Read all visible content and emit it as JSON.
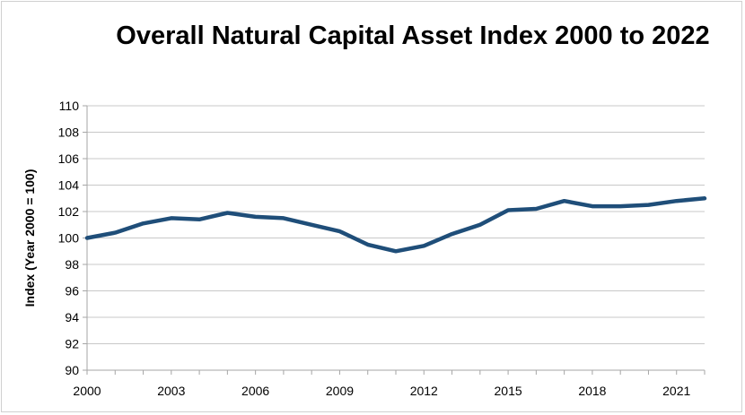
{
  "chart_data": {
    "type": "line",
    "title": "Overall Natural Capital Asset Index 2000 to 2022",
    "xlabel": "",
    "ylabel": "Index (Year 2000 = 100)",
    "ylim": [
      90,
      110
    ],
    "yticks": [
      90,
      92,
      94,
      96,
      98,
      100,
      102,
      104,
      106,
      108,
      110
    ],
    "xlim": [
      2000,
      2022
    ],
    "xticks": [
      2000,
      2003,
      2006,
      2009,
      2012,
      2015,
      2018,
      2021
    ],
    "grid": true,
    "line_color": "#1f4e79",
    "series": [
      {
        "x": [
          2000,
          2001,
          2002,
          2003,
          2004,
          2005,
          2006,
          2007,
          2008,
          2009,
          2010,
          2011,
          2012,
          2013,
          2014,
          2015,
          2016,
          2017,
          2018,
          2019,
          2020,
          2021,
          2022
        ],
        "values": [
          100.0,
          100.4,
          101.1,
          101.5,
          101.4,
          101.9,
          101.6,
          101.5,
          101.0,
          100.5,
          99.5,
          99.0,
          99.4,
          100.3,
          101.0,
          102.1,
          102.2,
          102.8,
          102.4,
          102.4,
          102.5,
          102.8,
          103.0
        ]
      }
    ]
  }
}
